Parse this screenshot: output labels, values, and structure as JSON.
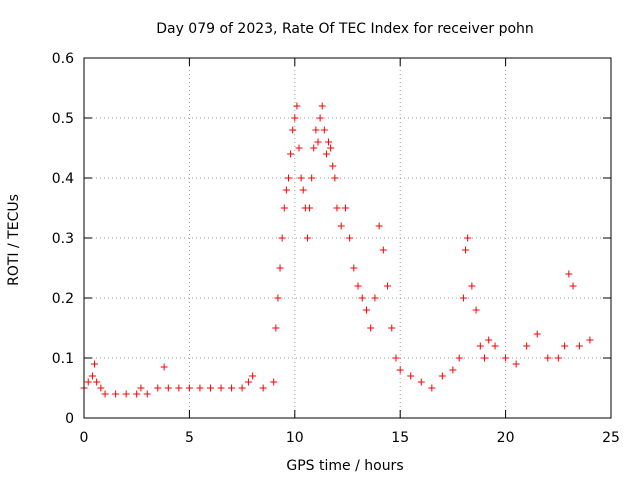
{
  "chart_data": {
    "type": "scatter",
    "title": "Day 079 of 2023, Rate Of TEC Index for receiver pohn",
    "xlabel": "GPS time / hours",
    "ylabel": "ROTI / TECUs",
    "xlim": [
      0,
      25
    ],
    "ylim": [
      0,
      0.6
    ],
    "xticks": [
      0,
      5,
      10,
      15,
      20,
      25
    ],
    "yticks": [
      0,
      0.1,
      0.2,
      0.3,
      0.4,
      0.5,
      0.6
    ],
    "grid": true,
    "legend": "none",
    "marker": "+",
    "color": "#ff0000",
    "series": [
      {
        "x": [
          0.0,
          0.2,
          0.4,
          0.5,
          0.6,
          0.8,
          1.0,
          1.5,
          2.0,
          2.5,
          2.7,
          3.0,
          3.5,
          3.8,
          4.0,
          4.5,
          5.0,
          5.5,
          6.0,
          6.5,
          7.0,
          7.5,
          7.8,
          8.0,
          8.5,
          9.0,
          9.1,
          9.2,
          9.3,
          9.4,
          9.5,
          9.6,
          9.7,
          9.8,
          9.9,
          10.0,
          10.1,
          10.2,
          10.3,
          10.4,
          10.5,
          10.6,
          10.7,
          10.8,
          10.9,
          11.0,
          11.1,
          11.2,
          11.3,
          11.4,
          11.5,
          11.6,
          11.7,
          11.8,
          11.9,
          12.0,
          12.2,
          12.4,
          12.6,
          12.8,
          13.0,
          13.2,
          13.4,
          13.6,
          13.8,
          14.0,
          14.2,
          14.4,
          14.6,
          14.8,
          15.0,
          15.5,
          16.0,
          16.5,
          17.0,
          17.5,
          17.8,
          18.0,
          18.1,
          18.2,
          18.4,
          18.6,
          18.8,
          19.0,
          19.2,
          19.5,
          20.0,
          20.5,
          21.0,
          21.5,
          22.0,
          22.5,
          22.8,
          23.0,
          23.2,
          23.5,
          24.0
        ],
        "y": [
          0.05,
          0.06,
          0.07,
          0.09,
          0.06,
          0.05,
          0.04,
          0.04,
          0.04,
          0.04,
          0.05,
          0.04,
          0.05,
          0.085,
          0.05,
          0.05,
          0.05,
          0.05,
          0.05,
          0.05,
          0.05,
          0.05,
          0.06,
          0.07,
          0.05,
          0.06,
          0.15,
          0.2,
          0.25,
          0.3,
          0.35,
          0.38,
          0.4,
          0.44,
          0.48,
          0.5,
          0.52,
          0.45,
          0.4,
          0.38,
          0.35,
          0.3,
          0.35,
          0.4,
          0.45,
          0.48,
          0.46,
          0.5,
          0.52,
          0.48,
          0.44,
          0.46,
          0.45,
          0.42,
          0.4,
          0.35,
          0.32,
          0.35,
          0.3,
          0.25,
          0.22,
          0.2,
          0.18,
          0.15,
          0.2,
          0.32,
          0.28,
          0.22,
          0.15,
          0.1,
          0.08,
          0.07,
          0.06,
          0.05,
          0.07,
          0.08,
          0.1,
          0.2,
          0.28,
          0.3,
          0.22,
          0.18,
          0.12,
          0.1,
          0.13,
          0.12,
          0.1,
          0.09,
          0.12,
          0.14,
          0.1,
          0.1,
          0.12,
          0.24,
          0.22,
          0.12,
          0.13
        ]
      }
    ]
  }
}
